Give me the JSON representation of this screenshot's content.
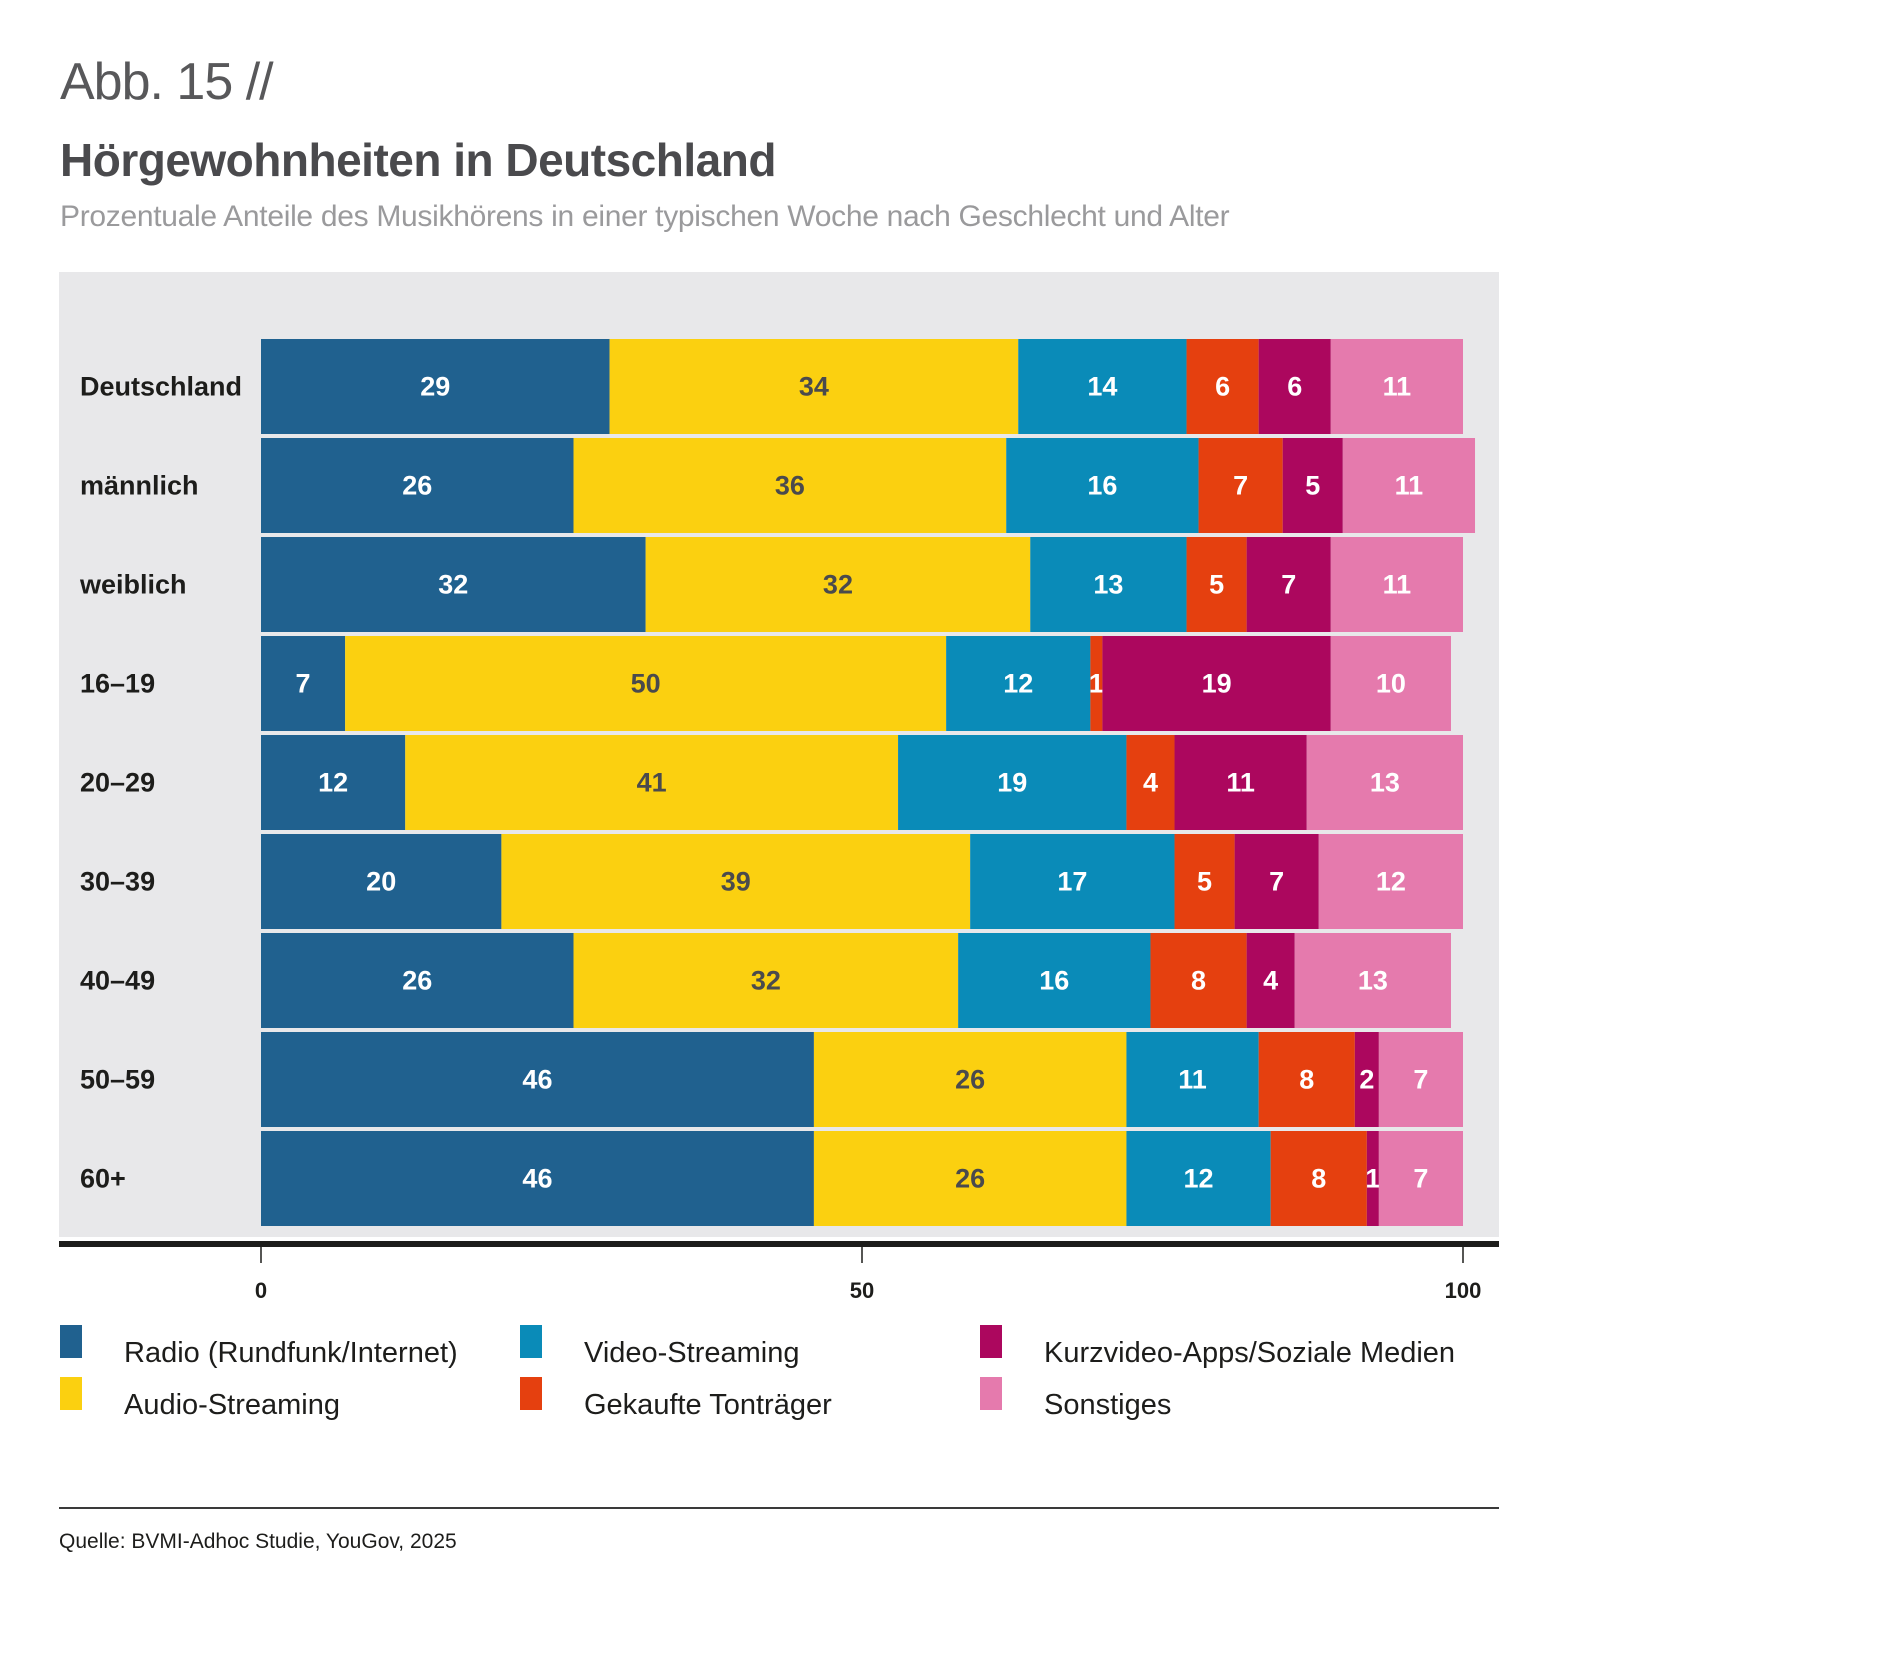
{
  "header": {
    "figure_number": "Abb. 15 //",
    "title": "Hörgewohnheiten in Deutschland",
    "subtitle": "Prozentuale Anteile des Musikhörens in einer typischen Woche nach Geschlecht und Alter"
  },
  "footer": {
    "source": "Quelle: BVMI-Adhoc Studie, YouGov, 2025"
  },
  "chart_data": {
    "type": "bar",
    "orientation": "horizontal",
    "stacked": true,
    "title": "Hörgewohnheiten in Deutschland",
    "subtitle": "Prozentuale Anteile des Musikhörens in einer typischen Woche nach Geschlecht und Alter",
    "xlabel": "",
    "ylabel": "",
    "xlim": [
      0,
      100
    ],
    "xticks": [
      0,
      50,
      100
    ],
    "grid": false,
    "legend_position": "bottom",
    "categories": [
      "Deutschland",
      "männlich",
      "weiblich",
      "16–19",
      "20–29",
      "30–39",
      "40–49",
      "50–59",
      "60+"
    ],
    "series": [
      {
        "name": "Radio (Rundfunk/Internet)",
        "color": "#20618f",
        "label_color": "#ffffff",
        "values": [
          29,
          26,
          32,
          7,
          12,
          20,
          26,
          46,
          46
        ]
      },
      {
        "name": "Audio-Streaming",
        "color": "#fbd010",
        "label_color": "#4a4a4d",
        "values": [
          34,
          36,
          32,
          50,
          41,
          39,
          32,
          26,
          26
        ]
      },
      {
        "name": "Video-Streaming",
        "color": "#0a8bb8",
        "label_color": "#ffffff",
        "values": [
          14,
          16,
          13,
          12,
          19,
          17,
          16,
          11,
          12
        ]
      },
      {
        "name": "Gekaufte Tonträger",
        "color": "#e5400f",
        "label_color": "#ffffff",
        "values": [
          6,
          7,
          5,
          1,
          4,
          5,
          8,
          8,
          8
        ]
      },
      {
        "name": "Kurzvideo-Apps/Soziale Medien",
        "color": "#ac075e",
        "label_color": "#ffffff",
        "values": [
          6,
          5,
          7,
          19,
          11,
          7,
          4,
          2,
          1
        ]
      },
      {
        "name": "Sonstiges",
        "color": "#e57aad",
        "label_color": "#ffffff",
        "values": [
          11,
          11,
          11,
          10,
          13,
          12,
          13,
          7,
          7
        ]
      }
    ]
  }
}
